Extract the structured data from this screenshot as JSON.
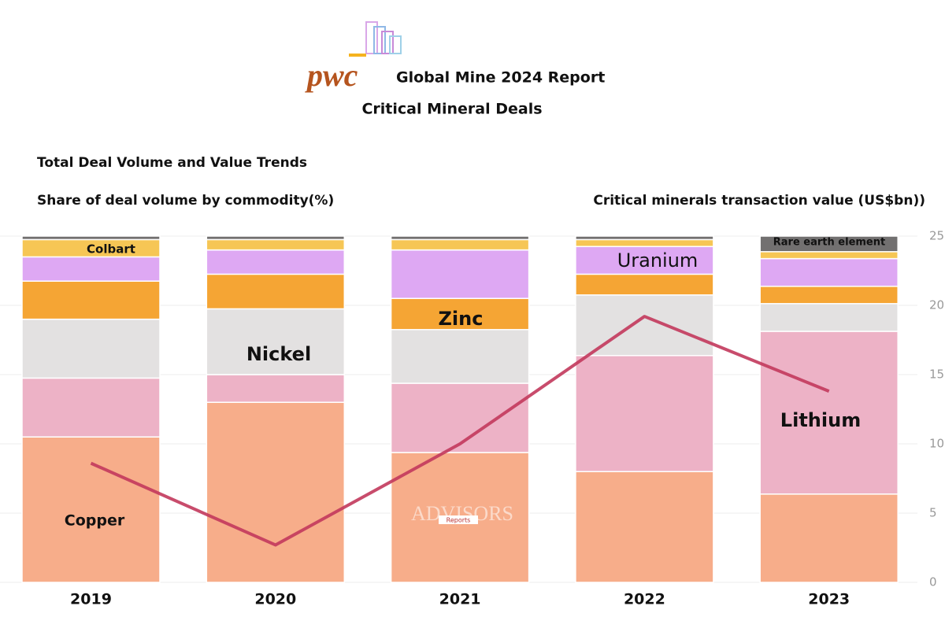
{
  "logo": "pwc",
  "header": {
    "title": "Global Mine 2024 Report",
    "subtitle": "Critical Mineral Deals"
  },
  "watermark": {
    "main": "ADVISORS",
    "tag": "Reports"
  },
  "chart_data": {
    "type": "bar",
    "stacked": true,
    "title": "Total Deal  Volume and Value Trends",
    "ylabel": "Share of deal volume by commodity(%)",
    "y2label": "Critical minerals transaction value (US$bn))",
    "categories": [
      "2019",
      "2020",
      "2021",
      "2022",
      "2023"
    ],
    "ylim": [
      0,
      100
    ],
    "series": [
      {
        "name": "Copper",
        "color": "#f7ad8a",
        "values": [
          42,
          52,
          37.5,
          32,
          25.5
        ]
      },
      {
        "name": "Lithium",
        "color": "#edb2c6",
        "values": [
          17,
          8,
          20,
          33.5,
          47
        ]
      },
      {
        "name": "Nickel",
        "color": "#e3e1e1",
        "values": [
          17,
          19,
          15.5,
          17.5,
          8
        ]
      },
      {
        "name": "Zinc",
        "color": "#f5a534",
        "values": [
          11,
          10,
          9,
          6,
          5
        ]
      },
      {
        "name": "Uranium",
        "color": "#dea8f3",
        "values": [
          7,
          7,
          14,
          8,
          8
        ]
      },
      {
        "name": "Colbart",
        "color": "#f6c655",
        "values": [
          5,
          3,
          3,
          2,
          2
        ]
      },
      {
        "name": "Rare earth element",
        "color": "#727070",
        "values": [
          1,
          1,
          1,
          1,
          4.5
        ]
      }
    ],
    "line": {
      "type": "line",
      "axis": "y2",
      "color": "#c2385c",
      "values": [
        8.6,
        2.7,
        10,
        19.2,
        13.8
      ]
    },
    "y2lim": [
      0,
      25
    ],
    "y2ticks": [
      0,
      5,
      10,
      15,
      20,
      25
    ],
    "grid": true
  }
}
